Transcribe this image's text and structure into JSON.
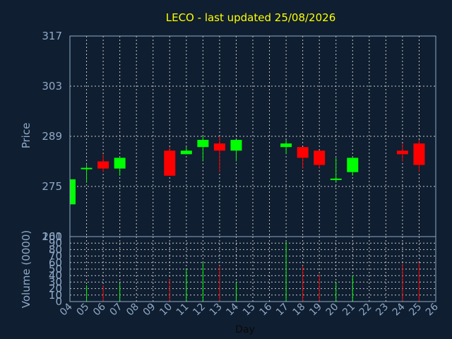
{
  "chart_data": [
    {
      "type": "candlestick",
      "title": "LECO - last updated 25/08/2026",
      "ylabel": "Price",
      "ylim": [
        261,
        317
      ],
      "yticks": [
        "317",
        "303",
        "289",
        "275",
        "261"
      ],
      "grid": true,
      "colors": {
        "up": "#00ff00",
        "down": "#ff0000",
        "background": "#0f1e30",
        "axis": "#8fa9c8",
        "title": "#ffff00"
      },
      "x": [
        "04",
        "05",
        "06",
        "07",
        "08",
        "09",
        "10",
        "11",
        "12",
        "13",
        "14",
        "15",
        "16",
        "17",
        "18",
        "19",
        "20",
        "21",
        "22",
        "23",
        "24",
        "25",
        "26"
      ],
      "candles": [
        {
          "day": "04",
          "open": 270,
          "close": 277,
          "high": 278,
          "low": 270
        },
        {
          "day": "05",
          "open": 280,
          "close": 280,
          "high": 281,
          "low": 276
        },
        {
          "day": "06",
          "open": 282,
          "close": 280,
          "high": 284,
          "low": 279
        },
        {
          "day": "07",
          "open": 280,
          "close": 283,
          "high": 283,
          "low": 278
        },
        {
          "day": "10",
          "open": 285,
          "close": 278,
          "high": 286,
          "low": 278
        },
        {
          "day": "11",
          "open": 284,
          "close": 285,
          "high": 286,
          "low": 284
        },
        {
          "day": "12",
          "open": 286,
          "close": 288,
          "high": 289,
          "low": 282
        },
        {
          "day": "13",
          "open": 287,
          "close": 285,
          "high": 289,
          "low": 279
        },
        {
          "day": "14",
          "open": 285,
          "close": 288,
          "high": 288,
          "low": 282
        },
        {
          "day": "17",
          "open": 286,
          "close": 287,
          "high": 288,
          "low": 284
        },
        {
          "day": "18",
          "open": 286,
          "close": 283,
          "high": 286,
          "low": 280
        },
        {
          "day": "19",
          "open": 285,
          "close": 281,
          "high": 285,
          "low": 280
        },
        {
          "day": "20",
          "open": 277,
          "close": 277,
          "high": 283,
          "low": 276
        },
        {
          "day": "21",
          "open": 279,
          "close": 283,
          "high": 283,
          "low": 278
        },
        {
          "day": "24",
          "open": 285,
          "close": 284,
          "high": 287,
          "low": 282
        },
        {
          "day": "25",
          "open": 287,
          "close": 281,
          "high": 288,
          "low": 279
        }
      ]
    },
    {
      "type": "bar",
      "ylabel": "Volume (0000)",
      "xlabel": "Day",
      "ylim": [
        0,
        100
      ],
      "yticks": [
        "100",
        "90",
        "80",
        "70",
        "60",
        "50",
        "40",
        "30",
        "20",
        "10",
        "0"
      ],
      "grid": true,
      "categories": [
        "04",
        "05",
        "06",
        "07",
        "08",
        "09",
        "10",
        "11",
        "12",
        "13",
        "14",
        "15",
        "16",
        "17",
        "18",
        "19",
        "20",
        "21",
        "22",
        "23",
        "24",
        "25",
        "26"
      ],
      "bars": [
        {
          "day": "05",
          "value": 25,
          "direction": "up"
        },
        {
          "day": "06",
          "value": 25,
          "direction": "down"
        },
        {
          "day": "07",
          "value": 28,
          "direction": "up"
        },
        {
          "day": "10",
          "value": 35,
          "direction": "down"
        },
        {
          "day": "11",
          "value": 50,
          "direction": "up"
        },
        {
          "day": "12",
          "value": 60,
          "direction": "up"
        },
        {
          "day": "13",
          "value": 55,
          "direction": "down"
        },
        {
          "day": "14",
          "value": 30,
          "direction": "up"
        },
        {
          "day": "17",
          "value": 92,
          "direction": "up"
        },
        {
          "day": "18",
          "value": 55,
          "direction": "down"
        },
        {
          "day": "19",
          "value": 42,
          "direction": "down"
        },
        {
          "day": "20",
          "value": 30,
          "direction": "up"
        },
        {
          "day": "21",
          "value": 40,
          "direction": "up"
        },
        {
          "day": "24",
          "value": 58,
          "direction": "down"
        },
        {
          "day": "25",
          "value": 60,
          "direction": "down"
        }
      ]
    }
  ]
}
